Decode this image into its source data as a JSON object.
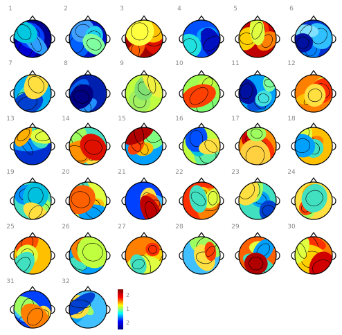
{
  "figure": {
    "maps": [
      {
        "label": "1",
        "palette": [
          "#00008f",
          "#0000d0",
          "#0040ff",
          "#2f9fff",
          "#00c8e0"
        ]
      },
      {
        "label": "2",
        "palette": [
          "#0010c0",
          "#0060ff",
          "#40a0ff",
          "#20d0f0",
          "#80ffa0"
        ]
      },
      {
        "label": "3",
        "palette": [
          "#a00000",
          "#e01000",
          "#ff6000",
          "#ffc000",
          "#ffff40"
        ]
      },
      {
        "label": "4",
        "palette": [
          "#0050ff",
          "#00a0ff",
          "#20e0e0",
          "#60ffb0",
          "#0010c0"
        ]
      },
      {
        "label": "5",
        "palette": [
          "#c00000",
          "#ff3000",
          "#ff8000",
          "#ffd000",
          "#e0ff40"
        ]
      },
      {
        "label": "6",
        "palette": [
          "#0030d0",
          "#0080ff",
          "#30c0ff",
          "#80e0ff",
          "#0010a0"
        ]
      },
      {
        "label": "7",
        "palette": [
          "#00b0f0",
          "#40e0c0",
          "#a0ff60",
          "#0040d0",
          "#ffe040"
        ]
      },
      {
        "label": "8",
        "palette": [
          "#0020b0",
          "#0060f0",
          "#2090ff",
          "#40c0ff",
          "#000080"
        ]
      },
      {
        "label": "9",
        "palette": [
          "#c0ff40",
          "#e0ff40",
          "#a0f060",
          "#80e070",
          "#f0f040"
        ]
      },
      {
        "label": "10",
        "palette": [
          "#a0ff50",
          "#c0ff40",
          "#e0f040",
          "#80ff70",
          "#ff4000"
        ]
      },
      {
        "label": "11",
        "palette": [
          "#00a0ff",
          "#0050e0",
          "#0010a0",
          "#40e0e0",
          "#80ffa0"
        ]
      },
      {
        "label": "12",
        "palette": [
          "#ff8000",
          "#ffc000",
          "#e0ff40",
          "#ff3000",
          "#ffe040"
        ]
      },
      {
        "label": "13",
        "palette": [
          "#0030d0",
          "#0090ff",
          "#40e0c0",
          "#e0ff40",
          "#ffb000"
        ]
      },
      {
        "label": "14",
        "palette": [
          "#40e0c0",
          "#a0ff60",
          "#ffe040",
          "#ff9000",
          "#e01000"
        ]
      },
      {
        "label": "15",
        "palette": [
          "#00a0ff",
          "#80ff80",
          "#ffc000",
          "#ff4000",
          "#b00000"
        ]
      },
      {
        "label": "16",
        "palette": [
          "#c0ff40",
          "#60f0a0",
          "#00c0e0",
          "#0050ff",
          "#ffe040"
        ]
      },
      {
        "label": "17",
        "palette": [
          "#ff9000",
          "#ff3000",
          "#d00000",
          "#ffd040",
          "#a0ff60"
        ]
      },
      {
        "label": "18",
        "palette": [
          "#ffc000",
          "#ff8000",
          "#e0ff40",
          "#40e0c0",
          "#00a0ff"
        ]
      },
      {
        "label": "19",
        "palette": [
          "#40e0c0",
          "#0090ff",
          "#a0ff60",
          "#00c0e0",
          "#ffe040"
        ]
      },
      {
        "label": "20",
        "palette": [
          "#e0ff40",
          "#40e0c0",
          "#ffc000",
          "#00a0ff",
          "#ff6000"
        ]
      },
      {
        "label": "21",
        "palette": [
          "#0040ff",
          "#40c0ff",
          "#ffe040",
          "#ff5000",
          "#c00000"
        ]
      },
      {
        "label": "22",
        "palette": [
          "#ff3000",
          "#ff8000",
          "#ffd000",
          "#e0ff40",
          "#40e0c0"
        ]
      },
      {
        "label": "23",
        "palette": [
          "#40e0c0",
          "#00a0ff",
          "#a0ff60",
          "#ffe040",
          "#0040d0"
        ]
      },
      {
        "label": "24",
        "palette": [
          "#ffe040",
          "#ffa000",
          "#a0ff60",
          "#ff4000",
          "#40e0c0"
        ]
      },
      {
        "label": "25",
        "palette": [
          "#ffc000",
          "#ff5000",
          "#c00000",
          "#e0ff40",
          "#40e0c0"
        ]
      },
      {
        "label": "26",
        "palette": [
          "#00a0ff",
          "#40e0c0",
          "#ffe040",
          "#ff8000",
          "#c0ff40"
        ]
      },
      {
        "label": "27",
        "palette": [
          "#ff8000",
          "#ffd000",
          "#ff3000",
          "#e0ff40",
          "#40e0c0"
        ]
      },
      {
        "label": "28",
        "palette": [
          "#40c0ff",
          "#0060ff",
          "#a0ff60",
          "#ffe040",
          "#ff4000"
        ]
      },
      {
        "label": "29",
        "palette": [
          "#ff6000",
          "#e0ff40",
          "#40e0c0",
          "#00a0ff",
          "#b00000"
        ]
      },
      {
        "label": "30",
        "palette": [
          "#ff8000",
          "#ff3000",
          "#ffd000",
          "#d00000",
          "#e0ff40"
        ]
      },
      {
        "label": "31",
        "palette": [
          "#0040ff",
          "#40c0ff",
          "#a0ff60",
          "#ffe040",
          "#ff8000"
        ]
      },
      {
        "label": "32",
        "palette": [
          "#40c0ff",
          "#00a0ff",
          "#a0ff60",
          "#ffe040",
          "#0040d0"
        ]
      }
    ],
    "colorbar": {
      "ticks": [
        "2",
        "1",
        "2"
      ],
      "colors": [
        "#800000",
        "#ff0000",
        "#ffff00",
        "#00ffff",
        "#0000ff",
        "#000080"
      ]
    }
  }
}
